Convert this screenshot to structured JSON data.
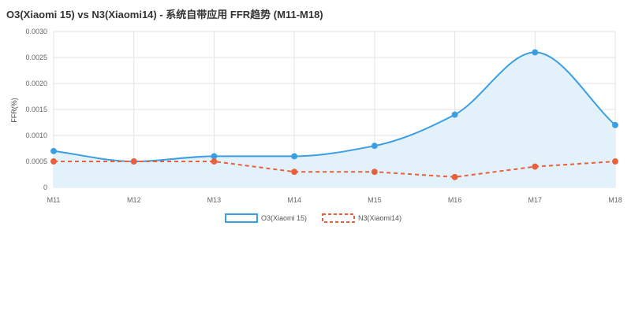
{
  "chart_data": {
    "type": "line",
    "title": "O3(Xiaomi 15) vs N3(Xiaomi14) - 系统自带应用 FFR趋势 (M11-M18)",
    "xlabel": "",
    "ylabel": "FFR(%)",
    "categories": [
      "M11",
      "M12",
      "M13",
      "M14",
      "M15",
      "M16",
      "M17",
      "M18"
    ],
    "ylim": [
      0,
      0.003
    ],
    "yticks": [
      "0",
      "0.0005",
      "0.0010",
      "0.0015",
      "0.0020",
      "0.0025",
      "0.0030"
    ],
    "grid": true,
    "legend_position": "bottom-center",
    "series": [
      {
        "name": "O3(Xiaomi 15)",
        "values": [
          0.0007,
          0.0005,
          0.0006,
          0.0006,
          0.0008,
          0.0014,
          0.0026,
          0.0012
        ],
        "color": "#3a9ee4",
        "fill": "#e3f1fb",
        "style": "solid-smooth-filled"
      },
      {
        "name": "N3(Xiaomi14)",
        "values": [
          0.0005,
          0.0005,
          0.0005,
          0.0003,
          0.0003,
          0.0002,
          0.0004,
          0.0005
        ],
        "color": "#e8603c",
        "style": "dashed"
      }
    ]
  }
}
